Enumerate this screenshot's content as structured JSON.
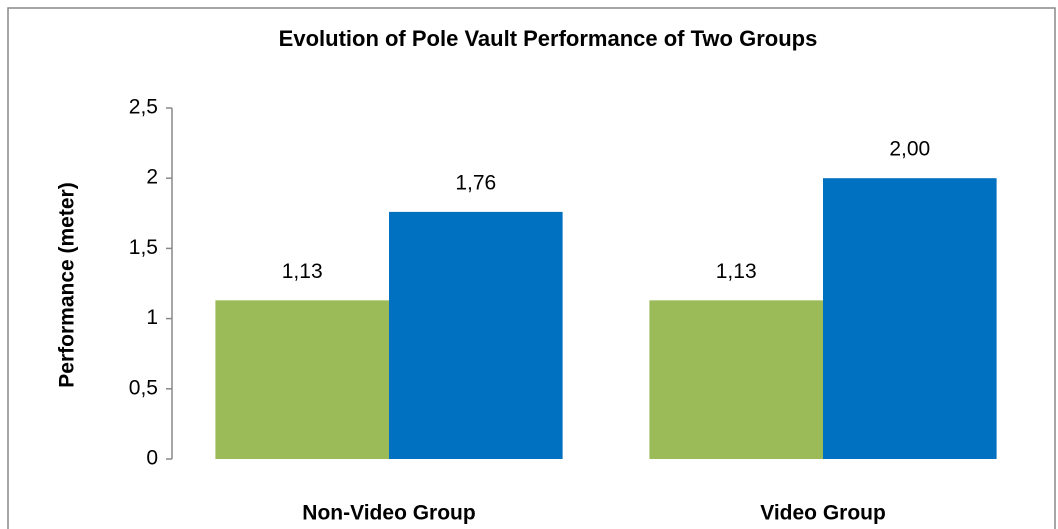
{
  "chart_data": {
    "type": "bar",
    "title": "Evolution of Pole Vault Performance of Two Groups",
    "y_label": "Performance (meter)",
    "categories": [
      "Non-Video Group",
      "Video Group"
    ],
    "series": [
      {
        "color": "#9bbb59",
        "values": [
          1.13,
          1.13
        ],
        "value_labels": [
          "1,13",
          "1,13"
        ]
      },
      {
        "color": "#0070c0",
        "values": [
          1.76,
          2.0
        ],
        "value_labels": [
          "1,76",
          "2,00"
        ]
      }
    ],
    "ylim": [
      0,
      2.5
    ],
    "yticks": [
      0,
      {
        "value": 0.5,
        "label": "0,5"
      },
      1,
      {
        "value": 1.5,
        "label": "1,5"
      },
      2,
      {
        "value": 2.5,
        "label": "2,5"
      }
    ],
    "grid": false
  }
}
